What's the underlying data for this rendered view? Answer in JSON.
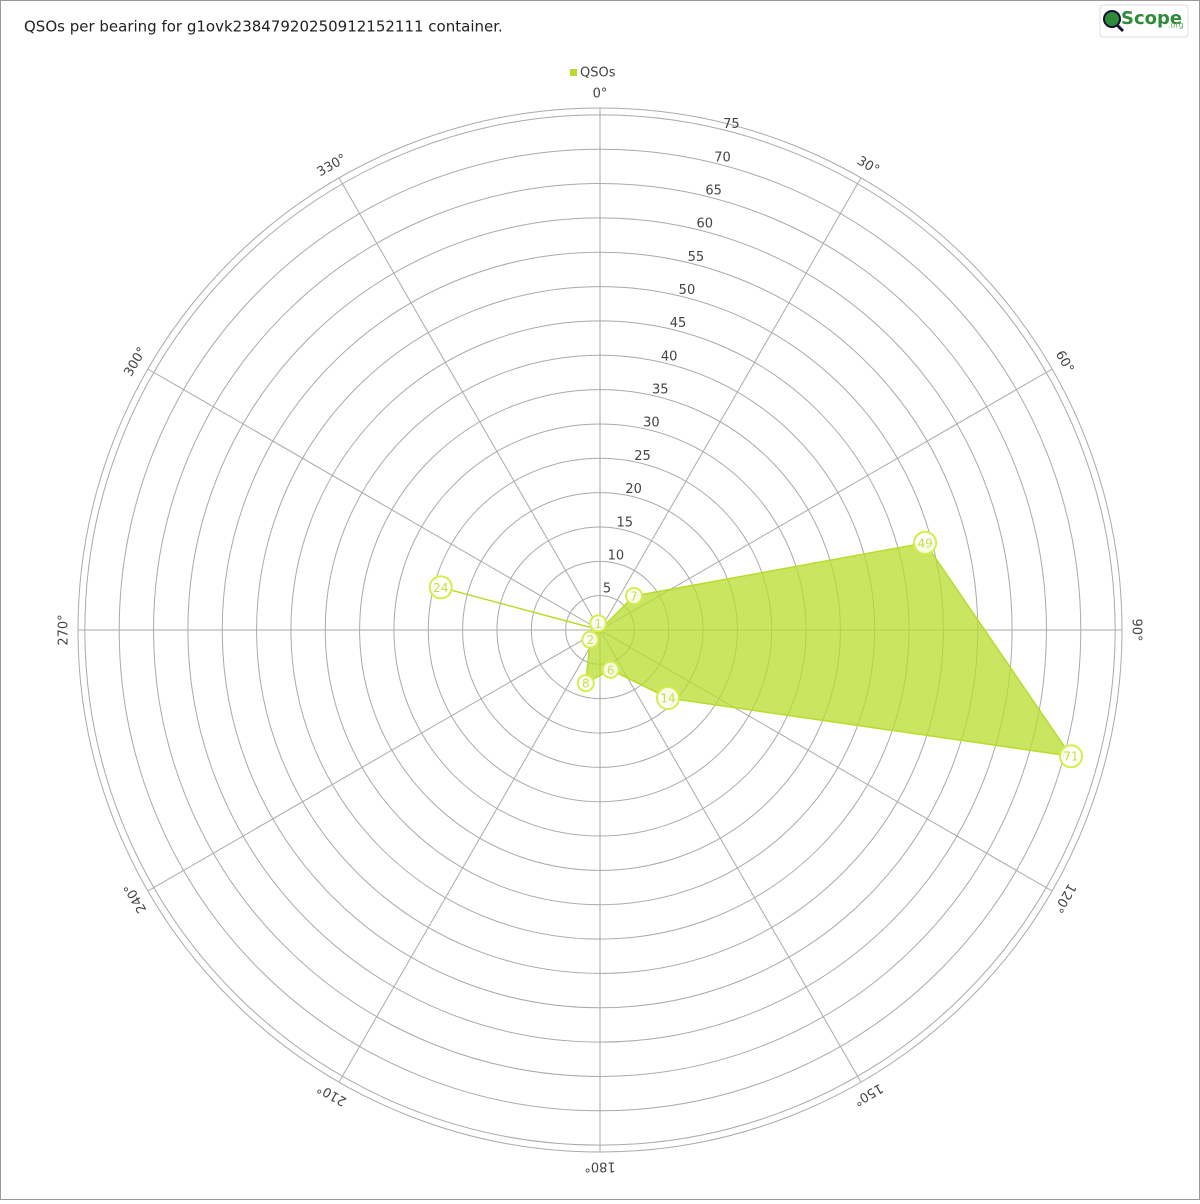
{
  "chart_data": {
    "type": "polar",
    "title": "QSOs per bearing for g1ovk23847920250912152111 container.",
    "logo": {
      "text": "Scope",
      "suffix": ".org"
    },
    "series": [
      {
        "name": "QSOs",
        "color": "#b8dc2c",
        "x": [
          15,
          45,
          75,
          105,
          135,
          165,
          195,
          225,
          255,
          285,
          315,
          345
        ],
        "values": [
          0,
          7,
          49,
          71,
          14,
          6,
          8,
          2,
          0,
          24,
          0,
          1
        ]
      }
    ],
    "xticks": [
      {
        "value": 0,
        "label": "0°"
      },
      {
        "value": 30,
        "label": "30°"
      },
      {
        "value": 60,
        "label": "60°"
      },
      {
        "value": 90,
        "label": "90°"
      },
      {
        "value": 120,
        "label": "120°"
      },
      {
        "value": 150,
        "label": "150°"
      },
      {
        "value": 180,
        "label": "180°"
      },
      {
        "value": 210,
        "label": "210°"
      },
      {
        "value": 240,
        "label": "240°"
      },
      {
        "value": 270,
        "label": "270°"
      },
      {
        "value": 300,
        "label": "300°"
      },
      {
        "value": 330,
        "label": "330°"
      }
    ],
    "ylim": [
      0,
      76
    ],
    "yticks": [
      5,
      10,
      15,
      20,
      25,
      30,
      35,
      40,
      45,
      50,
      55,
      60,
      65,
      70,
      75
    ],
    "grid": true,
    "legend": "top"
  }
}
